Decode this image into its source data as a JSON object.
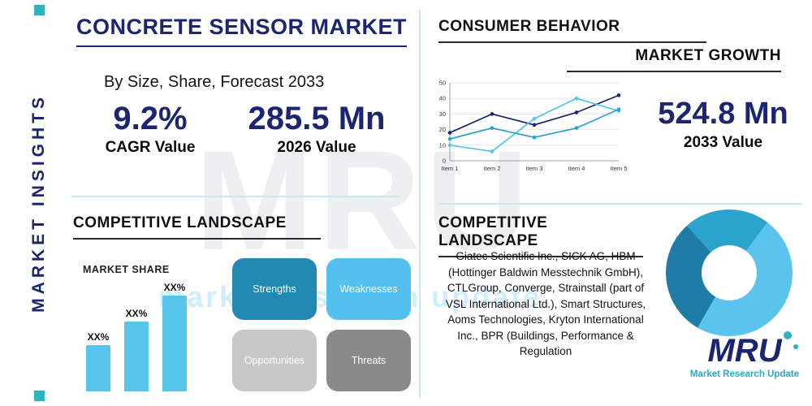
{
  "colors": {
    "navy": "#1b2570",
    "teal_accent": "#2fb4bf",
    "sky": "#56c5ea",
    "divider": "#c4e9f2"
  },
  "sidebar": {
    "label": "MARKET INSIGHTS"
  },
  "header": {
    "title": "CONCRETE SENSOR MARKET",
    "subtitle": "By Size, Share, Forecast 2033"
  },
  "stats": {
    "cagr": {
      "value": "9.2%",
      "label": "CAGR Value"
    },
    "y2026": {
      "value": "285.5 Mn",
      "label": "2026 Value"
    }
  },
  "consumer_behavior": {
    "heading": "CONSUMER BEHAVIOR",
    "growth_heading": "MARKET GROWTH",
    "value": "524.8 Mn",
    "label": "2033 Value"
  },
  "landscape_left": {
    "heading": "COMPETITIVE LANDSCAPE",
    "market_share_label": "MARKET SHARE",
    "swot": [
      {
        "label": "Strengths",
        "color": "#2389b4"
      },
      {
        "label": "Weaknesses",
        "color": "#54c0f0"
      },
      {
        "label": "Opportunities",
        "color": "#c8c8c8"
      },
      {
        "label": "Threats",
        "color": "#8a8a8a"
      }
    ]
  },
  "landscape_right": {
    "heading": "COMPETITIVE LANDSCAPE",
    "companies": "Giatec Scientific Inc., SICK AG, HBM (Hottinger Baldwin Messtechnik GmbH), CTLGroup, Converge, Strainstall (part of VSL International Ltd.), Smart Structures, Aoms Technologies, Kryton International Inc., BPR (Buildings, Performance & Regulation"
  },
  "watermark": {
    "text": "MRU",
    "subtext": "market research update"
  },
  "logo": {
    "text": "MRU",
    "subtext": "Market Research Update"
  },
  "chart_data": [
    {
      "type": "line",
      "title": "Market Growth",
      "categories": [
        "Item 1",
        "Item 2",
        "Item 3",
        "Item 4",
        "Item 5"
      ],
      "series": [
        {
          "name": "series-navy",
          "color": "#1b2570",
          "values": [
            18,
            30,
            23,
            31,
            42
          ]
        },
        {
          "name": "series-sky",
          "color": "#56c5ea",
          "values": [
            10,
            6,
            27,
            40,
            32
          ]
        },
        {
          "name": "series-teal",
          "color": "#2aa3c9",
          "values": [
            14,
            21,
            15,
            21,
            33
          ]
        }
      ],
      "ylim": [
        0,
        50
      ],
      "yticks": [
        0,
        10,
        20,
        30,
        40,
        50
      ],
      "grid": true,
      "legend": false
    },
    {
      "type": "bar",
      "title": "Market Share",
      "labels": [
        "XX%",
        "XX%",
        "XX%"
      ],
      "values": [
        30,
        45,
        62
      ],
      "color": "#56c5ea"
    },
    {
      "type": "donut",
      "start_deg": 210,
      "slices": [
        {
          "value": 30,
          "color": "#1e7ca6"
        },
        {
          "value": 22,
          "color": "#2aa3cd"
        },
        {
          "value": 48,
          "color": "#5ac4ee"
        }
      ]
    }
  ]
}
